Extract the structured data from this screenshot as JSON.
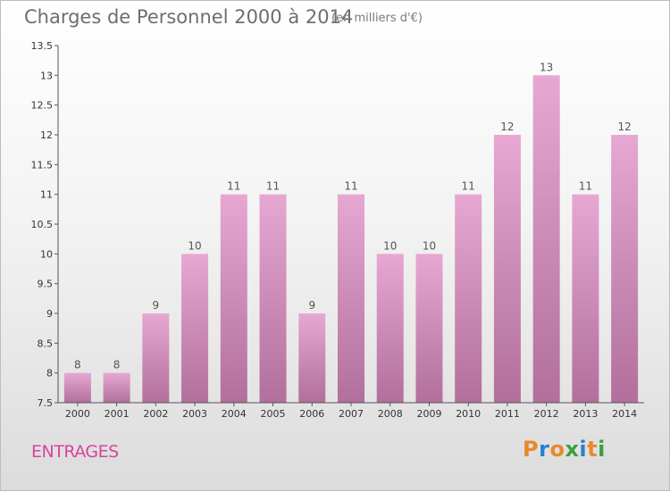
{
  "header": {
    "title": "Charges de Personnel 2000 à 2014",
    "unit": "(en milliers d'€)"
  },
  "commune": "ENTRAGES",
  "logo": {
    "text": "Proxiti",
    "letters": [
      "P",
      "r",
      "o",
      "x",
      "i",
      "t",
      "i"
    ],
    "colors": [
      "#e8892a",
      "#2a7fd0",
      "#e8892a",
      "#3aa040",
      "#2a7fd0",
      "#e8892a",
      "#3aa040"
    ]
  },
  "colors": {
    "bar_top": "#e6a8d3",
    "bar_bottom": "#b26f9c",
    "axis": "#555555"
  },
  "chart_data": {
    "type": "bar",
    "title": "Charges de Personnel 2000 à 2014",
    "subtitle": "(en milliers d'€)",
    "categories": [
      "2000",
      "2001",
      "2002",
      "2003",
      "2004",
      "2005",
      "2006",
      "2007",
      "2008",
      "2009",
      "2010",
      "2011",
      "2012",
      "2013",
      "2014"
    ],
    "values": [
      8,
      8,
      9,
      10,
      11,
      11,
      9,
      11,
      10,
      10,
      11,
      12,
      13,
      11,
      12
    ],
    "value_labels": [
      "8",
      "8",
      "9",
      "10",
      "11",
      "11",
      "9",
      "11",
      "10",
      "10",
      "11",
      "12",
      "13",
      "11",
      "12"
    ],
    "ylim": [
      7.5,
      13.5
    ],
    "yticks": [
      7.5,
      8,
      8.5,
      9,
      9.5,
      10,
      10.5,
      11,
      11.5,
      12,
      12.5,
      13,
      13.5
    ],
    "ytick_labels": [
      "7.5",
      "8",
      "8.5",
      "9",
      "9.5",
      "10",
      "10.5",
      "11",
      "11.5",
      "12",
      "12.5",
      "13",
      "13.5"
    ],
    "grid": false,
    "legend": "none"
  }
}
